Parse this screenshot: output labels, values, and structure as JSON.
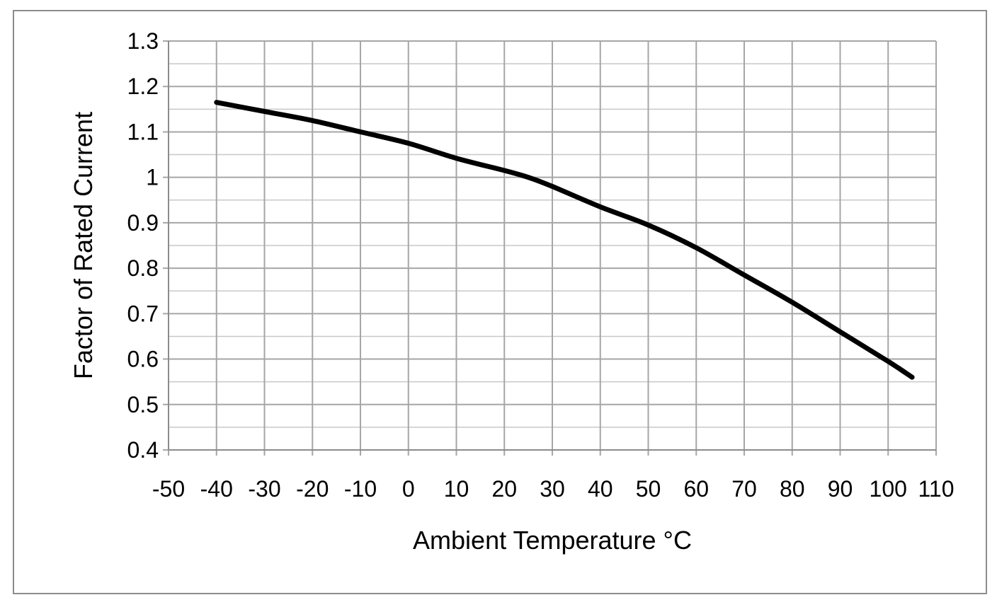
{
  "chart_data": {
    "type": "line",
    "title": "",
    "xlabel": "Ambient Temperature °C",
    "ylabel": "Factor of Rated Current",
    "xlim": [
      -50,
      110
    ],
    "ylim": [
      0.4,
      1.3
    ],
    "x_ticks": [
      -50,
      -40,
      -30,
      -20,
      -10,
      0,
      10,
      20,
      30,
      40,
      50,
      60,
      70,
      80,
      90,
      100,
      110
    ],
    "x_tick_labels": [
      "-50",
      "-40",
      "-30",
      "-20",
      "-10",
      "0",
      "10",
      "20",
      "30",
      "40",
      "50",
      "60",
      "70",
      "80",
      "90",
      "100",
      "110"
    ],
    "y_ticks": [
      0.4,
      0.5,
      0.6,
      0.7,
      0.8,
      0.9,
      1.0,
      1.1,
      1.2,
      1.3
    ],
    "y_tick_labels": [
      "0.4",
      "0.5",
      "0.6",
      "0.7",
      "0.8",
      "0.9",
      "1",
      "1.1",
      "1.2",
      "1.3"
    ],
    "y_minor_step": 0.05,
    "grid": true,
    "legend": "none",
    "colors": {
      "line": "#000000",
      "grid": "#a6a6a6",
      "border": "#8c8c8c"
    },
    "series": [
      {
        "x": [
          -40,
          -30,
          -20,
          -10,
          0,
          10,
          20,
          25,
          30,
          40,
          50,
          60,
          70,
          80,
          90,
          100,
          105
        ],
        "y": [
          1.165,
          1.145,
          1.125,
          1.1,
          1.075,
          1.042,
          1.015,
          1.0,
          0.98,
          0.935,
          0.895,
          0.845,
          0.785,
          0.725,
          0.66,
          0.595,
          0.56
        ]
      }
    ]
  }
}
